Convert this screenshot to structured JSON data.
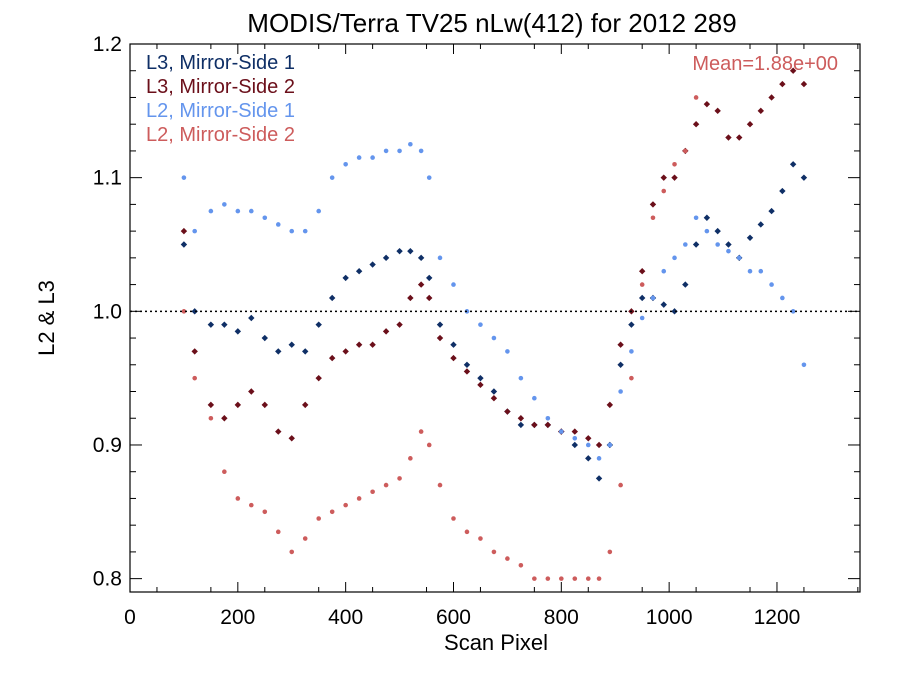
{
  "chart_data": {
    "type": "scatter",
    "title": "MODIS/Terra TV25 nLw(412) for 2012 289",
    "xlabel": "Scan Pixel",
    "ylabel": "L2 & L3",
    "xlim": [
      0,
      1354
    ],
    "ylim": [
      0.79,
      1.2
    ],
    "xticks": [
      0,
      200,
      400,
      600,
      800,
      1000,
      1200
    ],
    "yticks": [
      0.8,
      0.9,
      1.0,
      1.1,
      1.2
    ],
    "ytick_labels": [
      "0.8",
      "0.9",
      "1.0",
      "1.1",
      "1.2"
    ],
    "reference_line": 1.0,
    "annotation": "Mean=1.88e+00",
    "legend_position": "top-left",
    "series": [
      {
        "name": "L3, Mirror-Side 1",
        "color": "#0f2f66",
        "marker": "diamond",
        "points": [
          [
            100,
            1.05
          ],
          [
            120,
            1.0
          ],
          [
            150,
            0.99
          ],
          [
            175,
            0.99
          ],
          [
            200,
            0.985
          ],
          [
            225,
            0.995
          ],
          [
            250,
            0.98
          ],
          [
            275,
            0.97
          ],
          [
            300,
            0.975
          ],
          [
            325,
            0.97
          ],
          [
            350,
            0.99
          ],
          [
            375,
            1.01
          ],
          [
            400,
            1.025
          ],
          [
            425,
            1.03
          ],
          [
            450,
            1.035
          ],
          [
            475,
            1.04
          ],
          [
            500,
            1.045
          ],
          [
            520,
            1.045
          ],
          [
            540,
            1.04
          ],
          [
            555,
            1.025
          ],
          [
            575,
            0.99
          ],
          [
            600,
            0.975
          ],
          [
            625,
            0.96
          ],
          [
            650,
            0.95
          ],
          [
            675,
            0.94
          ],
          [
            700,
            0.925
          ],
          [
            725,
            0.915
          ],
          [
            750,
            0.915
          ],
          [
            775,
            0.915
          ],
          [
            800,
            0.91
          ],
          [
            825,
            0.9
          ],
          [
            850,
            0.89
          ],
          [
            870,
            0.875
          ],
          [
            890,
            0.9
          ],
          [
            910,
            0.96
          ],
          [
            930,
            0.99
          ],
          [
            950,
            1.01
          ],
          [
            970,
            1.01
          ],
          [
            990,
            1.005
          ],
          [
            1010,
            1.0
          ],
          [
            1030,
            1.02
          ],
          [
            1050,
            1.05
          ],
          [
            1070,
            1.07
          ],
          [
            1090,
            1.06
          ],
          [
            1110,
            1.05
          ],
          [
            1130,
            1.04
          ],
          [
            1150,
            1.055
          ],
          [
            1170,
            1.065
          ],
          [
            1190,
            1.075
          ],
          [
            1210,
            1.09
          ],
          [
            1230,
            1.11
          ],
          [
            1250,
            1.1
          ]
        ]
      },
      {
        "name": "L3, Mirror-Side 2",
        "color": "#6b0f1a",
        "marker": "diamond",
        "points": [
          [
            100,
            1.06
          ],
          [
            120,
            0.97
          ],
          [
            150,
            0.93
          ],
          [
            175,
            0.92
          ],
          [
            200,
            0.93
          ],
          [
            225,
            0.94
          ],
          [
            250,
            0.93
          ],
          [
            275,
            0.91
          ],
          [
            300,
            0.905
          ],
          [
            325,
            0.93
          ],
          [
            350,
            0.95
          ],
          [
            375,
            0.965
          ],
          [
            400,
            0.97
          ],
          [
            425,
            0.975
          ],
          [
            450,
            0.975
          ],
          [
            475,
            0.985
          ],
          [
            500,
            0.99
          ],
          [
            520,
            1.01
          ],
          [
            540,
            1.02
          ],
          [
            555,
            1.01
          ],
          [
            575,
            0.98
          ],
          [
            600,
            0.965
          ],
          [
            625,
            0.955
          ],
          [
            650,
            0.945
          ],
          [
            675,
            0.935
          ],
          [
            700,
            0.925
          ],
          [
            725,
            0.92
          ],
          [
            750,
            0.915
          ],
          [
            775,
            0.915
          ],
          [
            800,
            0.91
          ],
          [
            825,
            0.91
          ],
          [
            850,
            0.905
          ],
          [
            870,
            0.9
          ],
          [
            890,
            0.93
          ],
          [
            910,
            0.975
          ],
          [
            930,
            1.0
          ],
          [
            950,
            1.03
          ],
          [
            970,
            1.08
          ],
          [
            990,
            1.1
          ],
          [
            1010,
            1.1
          ],
          [
            1030,
            1.12
          ],
          [
            1050,
            1.14
          ],
          [
            1070,
            1.155
          ],
          [
            1090,
            1.15
          ],
          [
            1110,
            1.13
          ],
          [
            1130,
            1.13
          ],
          [
            1150,
            1.14
          ],
          [
            1170,
            1.15
          ],
          [
            1190,
            1.16
          ],
          [
            1210,
            1.17
          ],
          [
            1230,
            1.18
          ],
          [
            1250,
            1.17
          ]
        ]
      },
      {
        "name": "L2, Mirror-Side 1",
        "color": "#6495ed",
        "marker": "circle",
        "points": [
          [
            100,
            1.1
          ],
          [
            120,
            1.06
          ],
          [
            150,
            1.075
          ],
          [
            175,
            1.08
          ],
          [
            200,
            1.075
          ],
          [
            225,
            1.075
          ],
          [
            250,
            1.07
          ],
          [
            275,
            1.065
          ],
          [
            300,
            1.06
          ],
          [
            325,
            1.06
          ],
          [
            350,
            1.075
          ],
          [
            375,
            1.1
          ],
          [
            400,
            1.11
          ],
          [
            425,
            1.115
          ],
          [
            450,
            1.115
          ],
          [
            475,
            1.12
          ],
          [
            500,
            1.12
          ],
          [
            520,
            1.125
          ],
          [
            540,
            1.12
          ],
          [
            555,
            1.1
          ],
          [
            575,
            1.04
          ],
          [
            600,
            1.02
          ],
          [
            625,
            1.0
          ],
          [
            650,
            0.99
          ],
          [
            675,
            0.98
          ],
          [
            700,
            0.97
          ],
          [
            725,
            0.95
          ],
          [
            750,
            0.935
          ],
          [
            775,
            0.92
          ],
          [
            800,
            0.91
          ],
          [
            825,
            0.905
          ],
          [
            850,
            0.9
          ],
          [
            870,
            0.89
          ],
          [
            890,
            0.9
          ],
          [
            910,
            0.94
          ],
          [
            930,
            0.97
          ],
          [
            950,
            0.995
          ],
          [
            970,
            1.01
          ],
          [
            990,
            1.03
          ],
          [
            1010,
            1.04
          ],
          [
            1030,
            1.05
          ],
          [
            1050,
            1.07
          ],
          [
            1070,
            1.06
          ],
          [
            1090,
            1.05
          ],
          [
            1110,
            1.045
          ],
          [
            1130,
            1.04
          ],
          [
            1150,
            1.03
          ],
          [
            1170,
            1.03
          ],
          [
            1190,
            1.02
          ],
          [
            1210,
            1.01
          ],
          [
            1230,
            1.0
          ],
          [
            1250,
            0.96
          ]
        ]
      },
      {
        "name": "L2, Mirror-Side 2",
        "color": "#cd5c5c",
        "marker": "circle",
        "points": [
          [
            100,
            1.0
          ],
          [
            120,
            0.95
          ],
          [
            150,
            0.92
          ],
          [
            175,
            0.88
          ],
          [
            200,
            0.86
          ],
          [
            225,
            0.855
          ],
          [
            250,
            0.85
          ],
          [
            275,
            0.835
          ],
          [
            300,
            0.82
          ],
          [
            325,
            0.83
          ],
          [
            350,
            0.845
          ],
          [
            375,
            0.85
          ],
          [
            400,
            0.855
          ],
          [
            425,
            0.86
          ],
          [
            450,
            0.865
          ],
          [
            475,
            0.87
          ],
          [
            500,
            0.875
          ],
          [
            520,
            0.89
          ],
          [
            540,
            0.91
          ],
          [
            555,
            0.9
          ],
          [
            575,
            0.87
          ],
          [
            600,
            0.845
          ],
          [
            625,
            0.835
          ],
          [
            650,
            0.83
          ],
          [
            675,
            0.82
          ],
          [
            700,
            0.815
          ],
          [
            725,
            0.81
          ],
          [
            750,
            0.8
          ],
          [
            775,
            0.8
          ],
          [
            800,
            0.8
          ],
          [
            825,
            0.8
          ],
          [
            850,
            0.8
          ],
          [
            870,
            0.8
          ],
          [
            890,
            0.82
          ],
          [
            910,
            0.87
          ],
          [
            930,
            0.95
          ],
          [
            950,
            1.02
          ],
          [
            970,
            1.07
          ],
          [
            990,
            1.09
          ],
          [
            1010,
            1.11
          ],
          [
            1030,
            1.12
          ],
          [
            1050,
            1.16
          ]
        ]
      }
    ]
  }
}
